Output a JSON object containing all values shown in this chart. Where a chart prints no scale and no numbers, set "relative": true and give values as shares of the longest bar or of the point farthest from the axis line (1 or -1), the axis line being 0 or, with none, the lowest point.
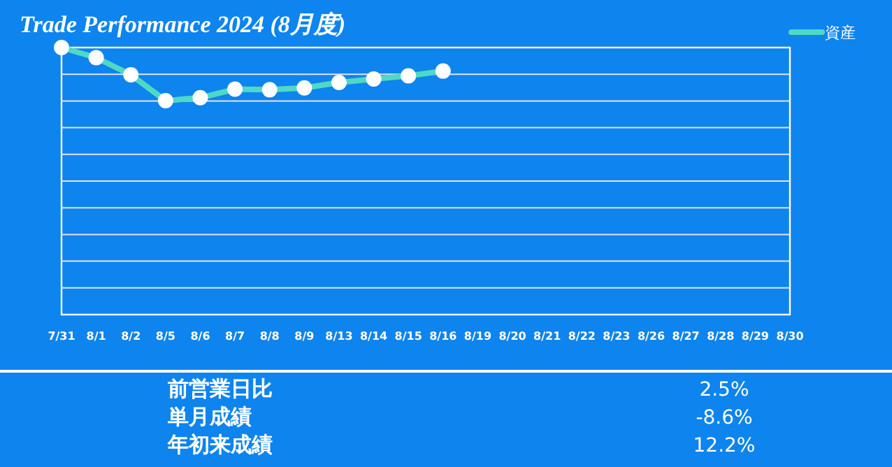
{
  "chart_data": {
    "type": "line",
    "title": "Trade Performance 2024 (8月度)",
    "relative": true,
    "grid": "y",
    "legend": "top right",
    "marker": "circle",
    "line_style": "solid",
    "categories": [
      "7/31",
      "8/1",
      "8/2",
      "8/5",
      "8/6",
      "8/7",
      "8/8",
      "8/9",
      "8/13",
      "8/14",
      "8/15",
      "8/16",
      "8/19",
      "8/20",
      "8/21",
      "8/22",
      "8/23",
      "8/26",
      "8/27",
      "8/28",
      "8/29",
      "8/30"
    ],
    "series": [
      {
        "name": "資産",
        "color": "#4fd8c4",
        "values": [
          1,
          0.962,
          0.898,
          0.801,
          0.812,
          0.844,
          0.842,
          0.849,
          0.869,
          0.882,
          0.894,
          0.912,
          null,
          null,
          null,
          null,
          null,
          null,
          null,
          null,
          null,
          null
        ]
      }
    ],
    "annotations": [
      "前営業日比",
      "2.5%",
      "単月成績",
      "-8.6%",
      "年初来成績",
      "12.2%"
    ]
  }
}
